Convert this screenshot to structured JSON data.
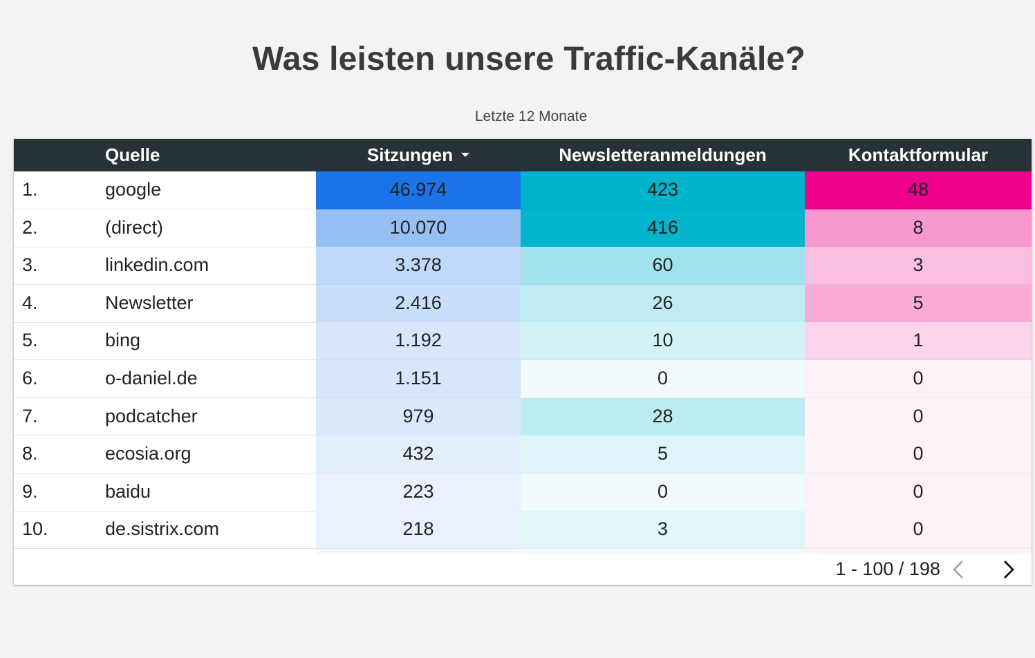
{
  "title": "Was leisten unsere Traffic-Kanäle?",
  "subtitle": "Letzte 12 Monate",
  "columns": {
    "source": "Quelle",
    "sessions": "Sitzungen",
    "newsletter": "Newsletteranmeldungen",
    "contact": "Kontaktformular"
  },
  "sort": {
    "column": "sessions",
    "direction": "descending"
  },
  "heatmap_colors": {
    "sessions": "#1a73e8",
    "newsletter": "#00b4cc",
    "contact": "#ec008c"
  },
  "rows": [
    {
      "rank": "1.",
      "source": "google",
      "sessions": "46.974",
      "newsletter": "423",
      "contact": "48"
    },
    {
      "rank": "2.",
      "source": "(direct)",
      "sessions": "10.070",
      "newsletter": "416",
      "contact": "8"
    },
    {
      "rank": "3.",
      "source": "linkedin.com",
      "sessions": "3.378",
      "newsletter": "60",
      "contact": "3"
    },
    {
      "rank": "4.",
      "source": "Newsletter",
      "sessions": "2.416",
      "newsletter": "26",
      "contact": "5"
    },
    {
      "rank": "5.",
      "source": "bing",
      "sessions": "1.192",
      "newsletter": "10",
      "contact": "1"
    },
    {
      "rank": "6.",
      "source": "o-daniel.de",
      "sessions": "1.151",
      "newsletter": "0",
      "contact": "0"
    },
    {
      "rank": "7.",
      "source": "podcatcher",
      "sessions": "979",
      "newsletter": "28",
      "contact": "0"
    },
    {
      "rank": "8.",
      "source": "ecosia.org",
      "sessions": "432",
      "newsletter": "5",
      "contact": "0"
    },
    {
      "rank": "9.",
      "source": "baidu",
      "sessions": "223",
      "newsletter": "0",
      "contact": "0"
    },
    {
      "rank": "10.",
      "source": "de.sistrix.com",
      "sessions": "218",
      "newsletter": "3",
      "contact": "0"
    }
  ],
  "pagination": {
    "range": "1 - 100 / 198",
    "prev_icon": "chevron-left-icon",
    "next_icon": "chevron-right-icon"
  }
}
